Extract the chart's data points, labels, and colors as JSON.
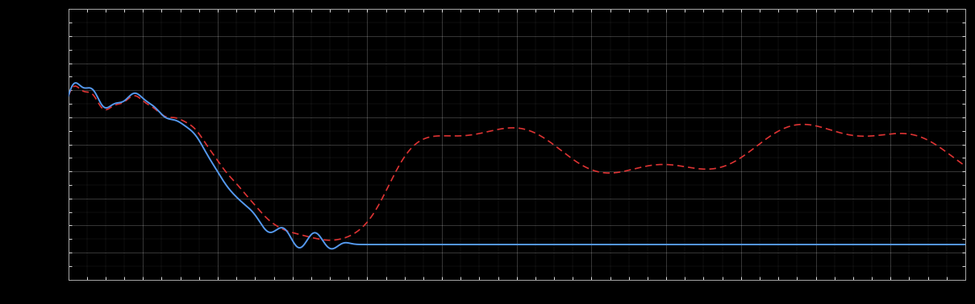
{
  "background_color": "#000000",
  "plot_bg_color": "#000000",
  "grid_color": "#ffffff",
  "grid_alpha": 0.25,
  "blue_line_color": "#5599ee",
  "red_line_color": "#dd3333",
  "blue_linewidth": 1.4,
  "red_linewidth": 1.2,
  "xlim": [
    0,
    48
  ],
  "ylim": [
    0,
    10
  ],
  "figsize": [
    12.09,
    3.78
  ],
  "dpi": 100,
  "n_points": 2000
}
